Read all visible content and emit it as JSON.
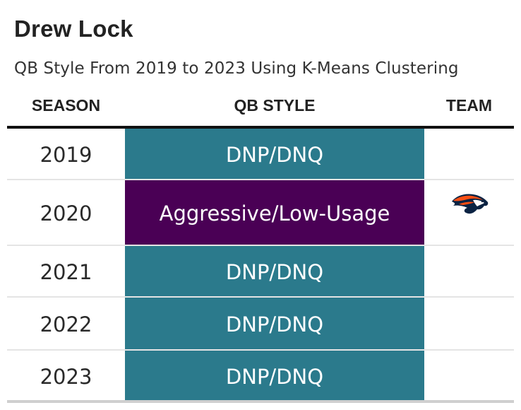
{
  "title": "Drew Lock",
  "subtitle": "QB Style From 2019 to 2023 Using K-Means Clustering",
  "columns": {
    "season": "SEASON",
    "style": "QB STYLE",
    "team": "TEAM"
  },
  "rows": [
    {
      "season": "2019",
      "style": "DNP/DNQ",
      "style_color": "#2b7a8c",
      "team_logo": ""
    },
    {
      "season": "2020",
      "style": "Aggressive/Low-Usage",
      "style_color": "#4a0055",
      "team_logo": "broncos-logo-icon"
    },
    {
      "season": "2021",
      "style": "DNP/DNQ",
      "style_color": "#2b7a8c",
      "team_logo": ""
    },
    {
      "season": "2022",
      "style": "DNP/DNQ",
      "style_color": "#2b7a8c",
      "team_logo": ""
    },
    {
      "season": "2023",
      "style": "DNP/DNQ",
      "style_color": "#2b7a8c",
      "team_logo": ""
    }
  ]
}
